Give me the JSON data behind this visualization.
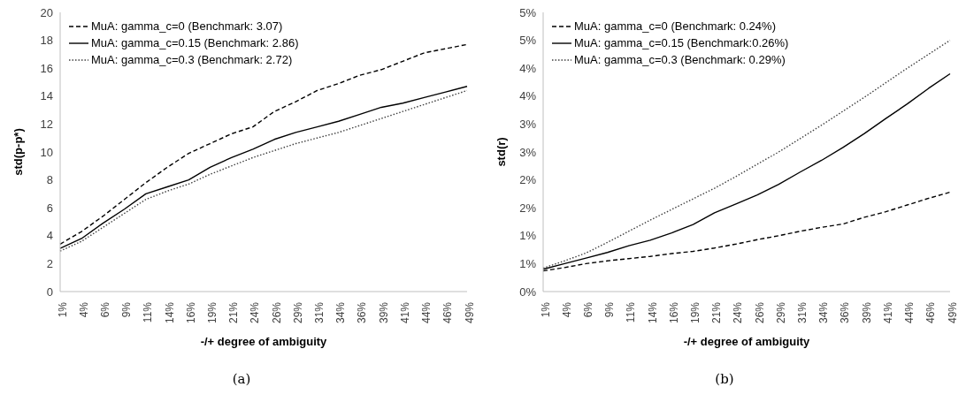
{
  "chart_data": [
    {
      "type": "line",
      "xlabel": "-/+ degree of ambiguity",
      "ylabel": "std(p-p*)",
      "categories": [
        "1%",
        "4%",
        "6%",
        "9%",
        "11%",
        "14%",
        "16%",
        "19%",
        "21%",
        "24%",
        "26%",
        "29%",
        "31%",
        "34%",
        "36%",
        "39%",
        "41%",
        "44%",
        "46%",
        "49%"
      ],
      "ylim": [
        0,
        20
      ],
      "yticks": [
        0,
        2,
        4,
        6,
        8,
        10,
        12,
        14,
        16,
        18,
        20
      ],
      "grid": false,
      "legend": "top left",
      "marker": "none",
      "annotations": [
        "(a)"
      ],
      "series": [
        {
          "name": "MuA: gamma_c=0 (Benchmark: 3.07)",
          "color": "#000000",
          "line_style": "dashed",
          "values": [
            3.4,
            4.3,
            5.4,
            6.6,
            7.8,
            8.9,
            9.9,
            10.6,
            11.3,
            11.8,
            12.9,
            13.6,
            14.4,
            14.9,
            15.5,
            15.9,
            16.5,
            17.1,
            17.4,
            17.7
          ]
        },
        {
          "name": "MuA: gamma_c=0.15 (Benchmark: 2.86)",
          "color": "#000000",
          "line_style": "solid",
          "values": [
            3.1,
            3.8,
            4.9,
            5.9,
            7.0,
            7.5,
            8.0,
            8.9,
            9.6,
            10.2,
            10.9,
            11.4,
            11.8,
            12.2,
            12.7,
            13.2,
            13.5,
            13.9,
            14.3,
            14.7
          ]
        },
        {
          "name": "MuA: gamma_c=0.3 (Benchmark: 2.72)",
          "color": "#404040",
          "line_style": "dotted",
          "values": [
            2.9,
            3.6,
            4.6,
            5.6,
            6.6,
            7.2,
            7.7,
            8.4,
            9.0,
            9.6,
            10.1,
            10.6,
            11.0,
            11.4,
            11.9,
            12.4,
            12.9,
            13.4,
            13.9,
            14.4
          ]
        }
      ]
    },
    {
      "type": "line",
      "xlabel": "-/+ degree of ambiguity",
      "ylabel": "std(r)",
      "categories": [
        "1%",
        "4%",
        "6%",
        "9%",
        "11%",
        "14%",
        "16%",
        "19%",
        "21%",
        "24%",
        "26%",
        "29%",
        "31%",
        "34%",
        "36%",
        "39%",
        "41%",
        "44%",
        "46%",
        "49%"
      ],
      "ylim": [
        0,
        5
      ],
      "yticks": [
        {
          "value": 0,
          "label": "0%"
        },
        {
          "value": 0.5,
          "label": "1%"
        },
        {
          "value": 1,
          "label": "1%"
        },
        {
          "value": 1.5,
          "label": "2%"
        },
        {
          "value": 2,
          "label": "2%"
        },
        {
          "value": 2.5,
          "label": "3%"
        },
        {
          "value": 3,
          "label": "3%"
        },
        {
          "value": 3.5,
          "label": "4%"
        },
        {
          "value": 4,
          "label": "4%"
        },
        {
          "value": 4.5,
          "label": "5%"
        },
        {
          "value": 5,
          "label": "5%"
        }
      ],
      "grid": false,
      "legend": "top left",
      "marker": "none",
      "annotations": [
        "(b)"
      ],
      "series": [
        {
          "name": "MuA: gamma_c=0 (Benchmark: 0.24%)",
          "color": "#000000",
          "line_style": "dashed",
          "values": [
            0.37,
            0.43,
            0.5,
            0.55,
            0.59,
            0.63,
            0.68,
            0.72,
            0.78,
            0.85,
            0.93,
            1.0,
            1.08,
            1.15,
            1.21,
            1.33,
            1.43,
            1.55,
            1.67,
            1.78
          ]
        },
        {
          "name": "MuA: gamma_c=0.15 (Benchmark:0.26%)",
          "color": "#000000",
          "line_style": "solid",
          "values": [
            0.4,
            0.5,
            0.6,
            0.7,
            0.82,
            0.92,
            1.05,
            1.2,
            1.41,
            1.57,
            1.73,
            1.92,
            2.14,
            2.35,
            2.58,
            2.83,
            3.1,
            3.36,
            3.64,
            3.9
          ]
        },
        {
          "name": "MuA: gamma_c=0.3 (Benchmark: 0.29%)",
          "color": "#404040",
          "line_style": "dotted",
          "values": [
            0.42,
            0.55,
            0.69,
            0.88,
            1.08,
            1.28,
            1.47,
            1.66,
            1.85,
            2.06,
            2.28,
            2.5,
            2.74,
            2.98,
            3.23,
            3.48,
            3.74,
            4.0,
            4.25,
            4.5
          ]
        }
      ]
    }
  ]
}
